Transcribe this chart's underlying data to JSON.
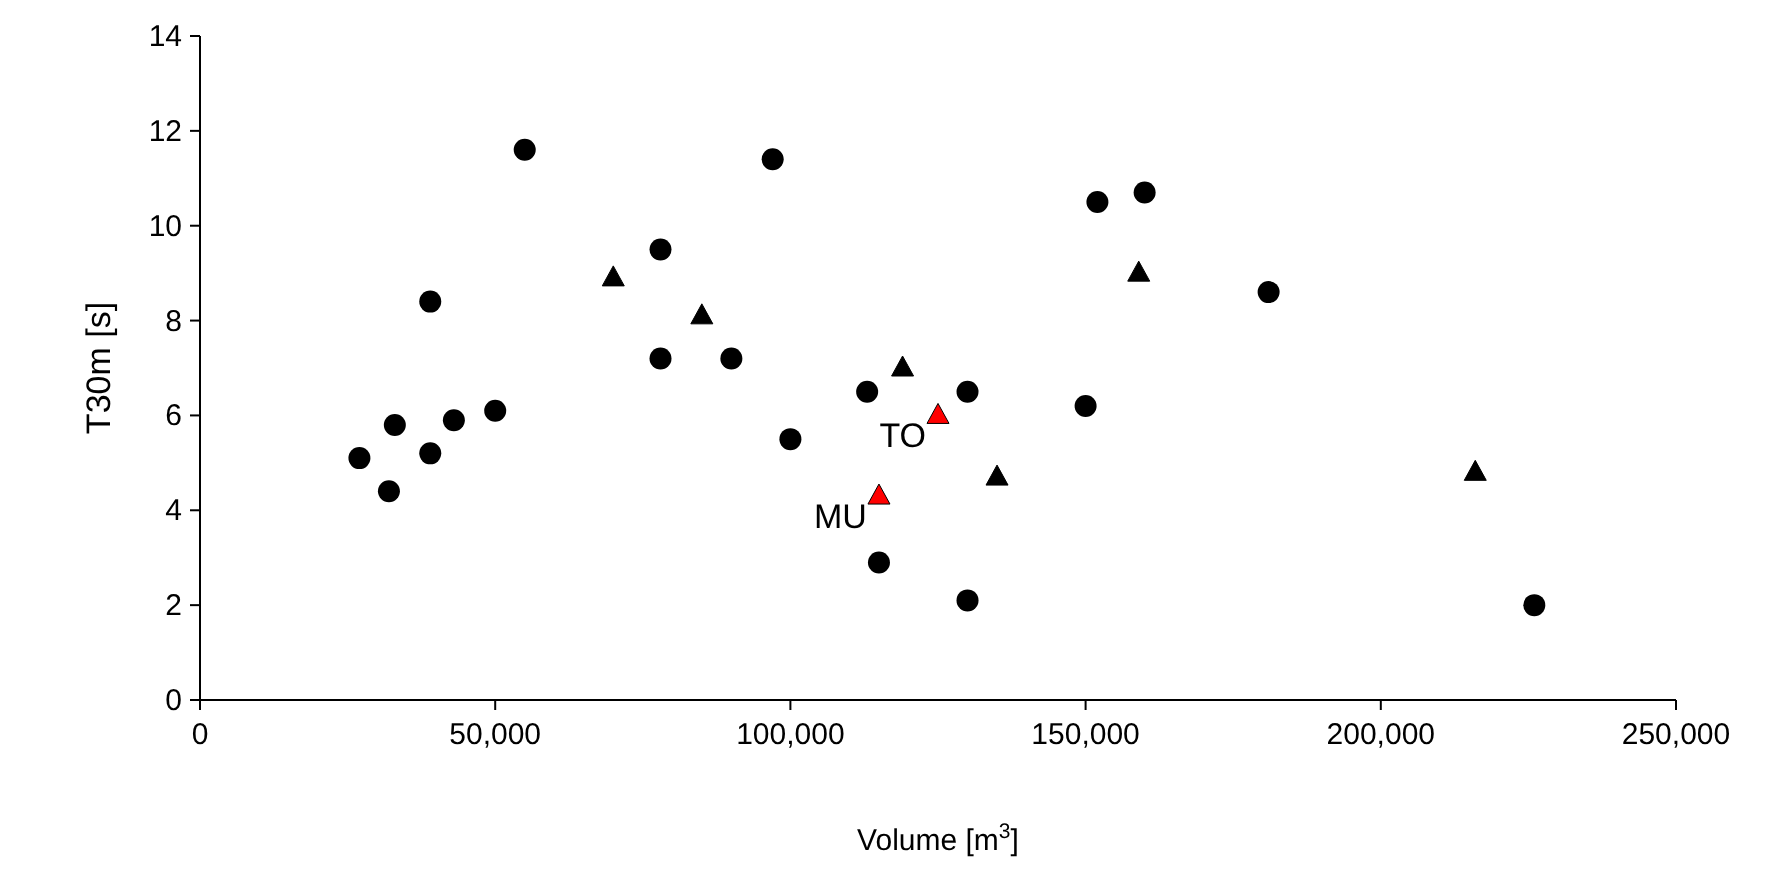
{
  "chart_data": {
    "type": "scatter",
    "xlabel": "Volume [m$^{3}$]",
    "ylabel": "T30m [s]",
    "xlim": [
      0,
      250000
    ],
    "ylim": [
      0,
      14
    ],
    "xticks": [
      {
        "value": 0,
        "label": "0"
      },
      {
        "value": 50000,
        "label": "50,000"
      },
      {
        "value": 100000,
        "label": "100,000"
      },
      {
        "value": 150000,
        "label": "150,000"
      },
      {
        "value": 200000,
        "label": "200,000"
      },
      {
        "value": 250000,
        "label": "250,000"
      }
    ],
    "yticks": [
      0,
      2,
      4,
      6,
      8,
      10,
      12,
      14
    ],
    "grid": false,
    "series": [
      {
        "color": "#000000",
        "marker": "circle",
        "x": [
          27000,
          32000,
          33000,
          39000,
          39000,
          43000,
          50000,
          55000,
          78000,
          78000,
          90000,
          97000,
          100000,
          113000,
          115000,
          130000,
          130000,
          150000,
          152000,
          160000,
          181000,
          226000
        ],
        "values": [
          5.1,
          4.4,
          5.8,
          8.4,
          5.2,
          5.9,
          6.1,
          11.6,
          9.5,
          7.2,
          7.2,
          11.4,
          5.5,
          6.5,
          2.9,
          6.5,
          2.1,
          6.2,
          10.5,
          10.7,
          8.6,
          2.0
        ]
      },
      {
        "color": "#000000",
        "marker": "triangle",
        "x": [
          70000,
          85000,
          119000,
          135000,
          159000,
          216000
        ],
        "values": [
          8.9,
          8.1,
          7.0,
          4.7,
          9.0,
          4.8
        ]
      },
      {
        "color": "#ff0000",
        "marker": "triangle",
        "x": [
          115000,
          125000
        ],
        "values": [
          4.3,
          6.0
        ]
      }
    ],
    "annotations": [
      {
        "text": "MU",
        "x": 115000,
        "y": 4.3
      },
      {
        "text": "TO",
        "x": 125000,
        "y": 6.0
      }
    ]
  }
}
